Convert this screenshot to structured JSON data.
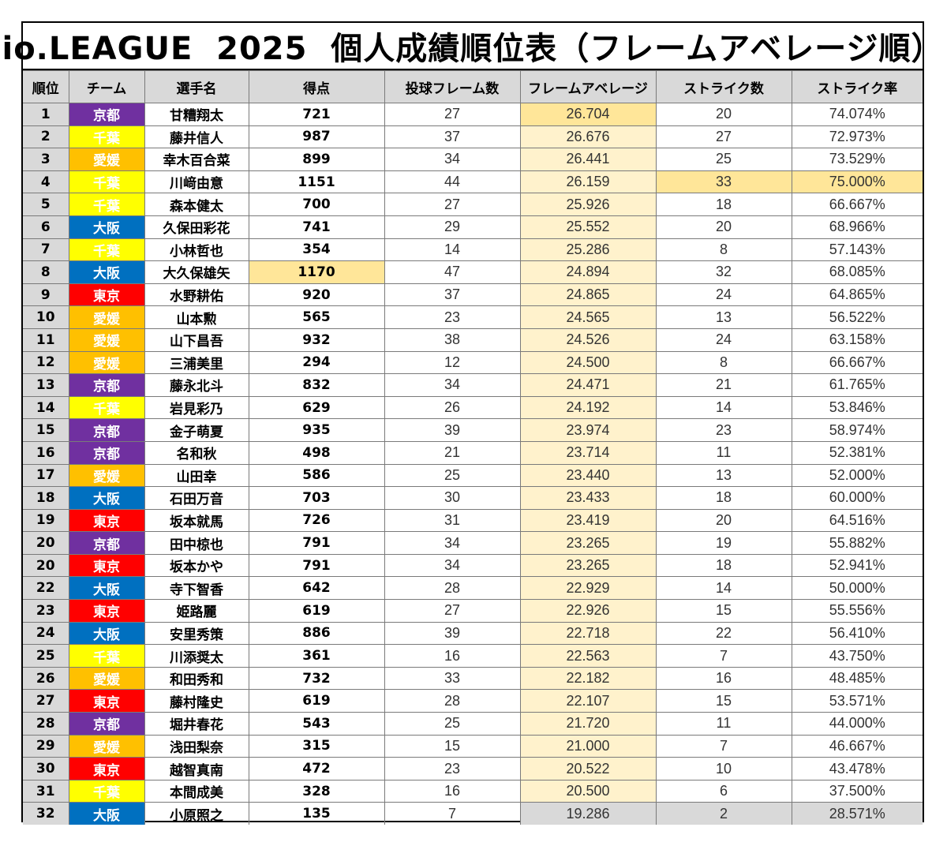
{
  "title": "io.LEAGUE  2025  個人成績順位表（フレームアベレージ順）",
  "headers": [
    "順位",
    "チーム",
    "選手名",
    "得点",
    "投球フレーム数",
    "フレームアベレージ",
    "ストライク数",
    "ストライク率"
  ],
  "team_colors": {
    "京都": {
      "bg": "#7030a0",
      "fg": "#ffffff"
    },
    "千葉": {
      "bg": "#ffff00",
      "fg": "#ffffff"
    },
    "愛媛": {
      "bg": "#ffc000",
      "fg": "#ffffff"
    },
    "大阪": {
      "bg": "#0070c0",
      "fg": "#ffffff"
    },
    "東京": {
      "bg": "#ff0000",
      "fg": "#ffffff"
    }
  },
  "rows": [
    {
      "rank": "1",
      "team": "京都",
      "name": "甘糟翔太",
      "score": "721",
      "frames": "27",
      "avg": "26.704",
      "strikes": "20",
      "rate": "74.074%"
    },
    {
      "rank": "2",
      "team": "千葉",
      "name": "藤井信人",
      "score": "987",
      "frames": "37",
      "avg": "26.676",
      "strikes": "27",
      "rate": "72.973%"
    },
    {
      "rank": "3",
      "team": "愛媛",
      "name": "幸木百合菜",
      "score": "899",
      "frames": "34",
      "avg": "26.441",
      "strikes": "25",
      "rate": "73.529%"
    },
    {
      "rank": "4",
      "team": "千葉",
      "name": "川﨑由意",
      "score": "1151",
      "frames": "44",
      "avg": "26.159",
      "strikes": "33",
      "rate": "75.000%"
    },
    {
      "rank": "5",
      "team": "千葉",
      "name": "森本健太",
      "score": "700",
      "frames": "27",
      "avg": "25.926",
      "strikes": "18",
      "rate": "66.667%"
    },
    {
      "rank": "6",
      "team": "大阪",
      "name": "久保田彩花",
      "score": "741",
      "frames": "29",
      "avg": "25.552",
      "strikes": "20",
      "rate": "68.966%"
    },
    {
      "rank": "7",
      "team": "千葉",
      "name": "小林哲也",
      "score": "354",
      "frames": "14",
      "avg": "25.286",
      "strikes": "8",
      "rate": "57.143%"
    },
    {
      "rank": "8",
      "team": "大阪",
      "name": "大久保雄矢",
      "score": "1170",
      "frames": "47",
      "avg": "24.894",
      "strikes": "32",
      "rate": "68.085%"
    },
    {
      "rank": "9",
      "team": "東京",
      "name": "水野耕佑",
      "score": "920",
      "frames": "37",
      "avg": "24.865",
      "strikes": "24",
      "rate": "64.865%"
    },
    {
      "rank": "10",
      "team": "愛媛",
      "name": "山本勲",
      "score": "565",
      "frames": "23",
      "avg": "24.565",
      "strikes": "13",
      "rate": "56.522%"
    },
    {
      "rank": "11",
      "team": "愛媛",
      "name": "山下昌吾",
      "score": "932",
      "frames": "38",
      "avg": "24.526",
      "strikes": "24",
      "rate": "63.158%"
    },
    {
      "rank": "12",
      "team": "愛媛",
      "name": "三浦美里",
      "score": "294",
      "frames": "12",
      "avg": "24.500",
      "strikes": "8",
      "rate": "66.667%"
    },
    {
      "rank": "13",
      "team": "京都",
      "name": "藤永北斗",
      "score": "832",
      "frames": "34",
      "avg": "24.471",
      "strikes": "21",
      "rate": "61.765%"
    },
    {
      "rank": "14",
      "team": "千葉",
      "name": "岩見彩乃",
      "score": "629",
      "frames": "26",
      "avg": "24.192",
      "strikes": "14",
      "rate": "53.846%"
    },
    {
      "rank": "15",
      "team": "京都",
      "name": "金子萌夏",
      "score": "935",
      "frames": "39",
      "avg": "23.974",
      "strikes": "23",
      "rate": "58.974%"
    },
    {
      "rank": "16",
      "team": "京都",
      "name": "名和秋",
      "score": "498",
      "frames": "21",
      "avg": "23.714",
      "strikes": "11",
      "rate": "52.381%"
    },
    {
      "rank": "17",
      "team": "愛媛",
      "name": "山田幸",
      "score": "586",
      "frames": "25",
      "avg": "23.440",
      "strikes": "13",
      "rate": "52.000%"
    },
    {
      "rank": "18",
      "team": "大阪",
      "name": "石田万音",
      "score": "703",
      "frames": "30",
      "avg": "23.433",
      "strikes": "18",
      "rate": "60.000%"
    },
    {
      "rank": "19",
      "team": "東京",
      "name": "坂本就馬",
      "score": "726",
      "frames": "31",
      "avg": "23.419",
      "strikes": "20",
      "rate": "64.516%"
    },
    {
      "rank": "20",
      "team": "京都",
      "name": "田中椋也",
      "score": "791",
      "frames": "34",
      "avg": "23.265",
      "strikes": "19",
      "rate": "55.882%"
    },
    {
      "rank": "20",
      "team": "東京",
      "name": "坂本かや",
      "score": "791",
      "frames": "34",
      "avg": "23.265",
      "strikes": "18",
      "rate": "52.941%"
    },
    {
      "rank": "22",
      "team": "大阪",
      "name": "寺下智香",
      "score": "642",
      "frames": "28",
      "avg": "22.929",
      "strikes": "14",
      "rate": "50.000%"
    },
    {
      "rank": "23",
      "team": "東京",
      "name": "姫路麗",
      "score": "619",
      "frames": "27",
      "avg": "22.926",
      "strikes": "15",
      "rate": "55.556%"
    },
    {
      "rank": "24",
      "team": "大阪",
      "name": "安里秀策",
      "score": "886",
      "frames": "39",
      "avg": "22.718",
      "strikes": "22",
      "rate": "56.410%"
    },
    {
      "rank": "25",
      "team": "千葉",
      "name": "川添奨太",
      "score": "361",
      "frames": "16",
      "avg": "22.563",
      "strikes": "7",
      "rate": "43.750%"
    },
    {
      "rank": "26",
      "team": "愛媛",
      "name": "和田秀和",
      "score": "732",
      "frames": "33",
      "avg": "22.182",
      "strikes": "16",
      "rate": "48.485%"
    },
    {
      "rank": "27",
      "team": "東京",
      "name": "藤村隆史",
      "score": "619",
      "frames": "28",
      "avg": "22.107",
      "strikes": "15",
      "rate": "53.571%"
    },
    {
      "rank": "28",
      "team": "京都",
      "name": "堀井春花",
      "score": "543",
      "frames": "25",
      "avg": "21.720",
      "strikes": "11",
      "rate": "44.000%"
    },
    {
      "rank": "29",
      "team": "愛媛",
      "name": "浅田梨奈",
      "score": "315",
      "frames": "15",
      "avg": "21.000",
      "strikes": "7",
      "rate": "46.667%"
    },
    {
      "rank": "30",
      "team": "東京",
      "name": "越智真南",
      "score": "472",
      "frames": "23",
      "avg": "20.522",
      "strikes": "10",
      "rate": "43.478%"
    },
    {
      "rank": "31",
      "team": "千葉",
      "name": "本間成美",
      "score": "328",
      "frames": "16",
      "avg": "20.500",
      "strikes": "6",
      "rate": "37.500%"
    },
    {
      "rank": "32",
      "team": "大阪",
      "name": "小原照之",
      "score": "135",
      "frames": "7",
      "avg": "19.286",
      "strikes": "2",
      "rate": "28.571%"
    }
  ],
  "highlights": {
    "top_average_row": "1",
    "top_strikes_row": "4",
    "top_score_row": "8",
    "lowest_row": "32"
  }
}
